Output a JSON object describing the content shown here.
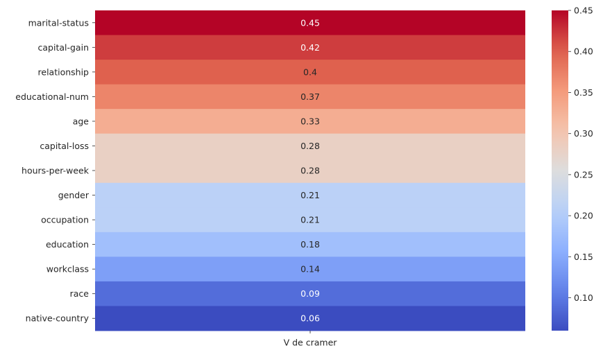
{
  "chart_data": {
    "type": "heatmap",
    "x_categories": [
      "V de cramer"
    ],
    "rows": [
      {
        "label": "marital-status",
        "value": 0.45,
        "display": "0.45"
      },
      {
        "label": "capital-gain",
        "value": 0.42,
        "display": "0.42"
      },
      {
        "label": "relationship",
        "value": 0.4,
        "display": "0.4"
      },
      {
        "label": "educational-num",
        "value": 0.37,
        "display": "0.37"
      },
      {
        "label": "age",
        "value": 0.33,
        "display": "0.33"
      },
      {
        "label": "capital-loss",
        "value": 0.28,
        "display": "0.28"
      },
      {
        "label": "hours-per-week",
        "value": 0.28,
        "display": "0.28"
      },
      {
        "label": "gender",
        "value": 0.21,
        "display": "0.21"
      },
      {
        "label": "occupation",
        "value": 0.21,
        "display": "0.21"
      },
      {
        "label": "education",
        "value": 0.18,
        "display": "0.18"
      },
      {
        "label": "workclass",
        "value": 0.14,
        "display": "0.14"
      },
      {
        "label": "race",
        "value": 0.09,
        "display": "0.09"
      },
      {
        "label": "native-country",
        "value": 0.06,
        "display": "0.06"
      }
    ],
    "colormap": "coolwarm",
    "colorbar": {
      "range": [
        0.06,
        0.45
      ],
      "ticks": [
        0.1,
        0.15,
        0.2,
        0.25,
        0.3,
        0.35,
        0.4,
        0.45
      ],
      "tick_labels": [
        "0.10",
        "0.15",
        "0.20",
        "0.25",
        "0.30",
        "0.35",
        "0.40",
        "0.45"
      ]
    },
    "annotations": true
  }
}
